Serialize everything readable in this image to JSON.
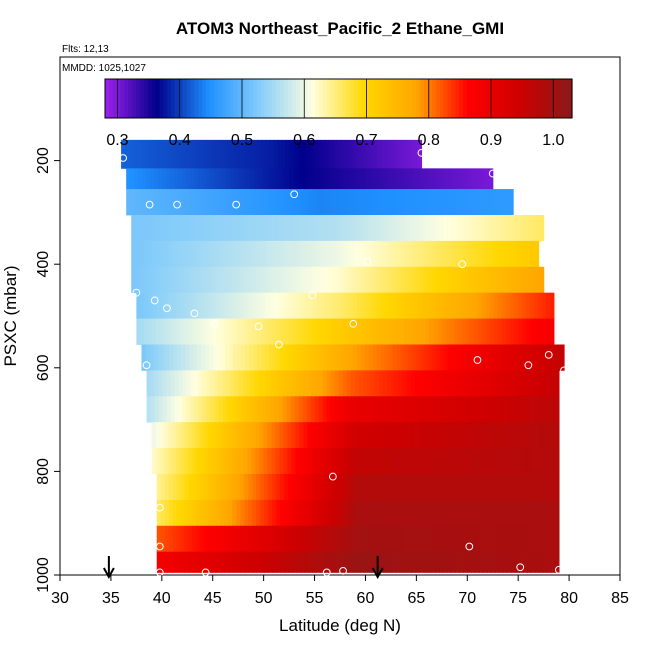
{
  "chart_data": {
    "type": "heatmap",
    "title": "ATOM3 Northeast_Pacific_2 Ethane_GMI",
    "flights_label": "Flts: 12,13",
    "date_label": "MMDD: 1025,1027",
    "xlabel": "Latitude (deg N)",
    "ylabel": "PSXC (mbar)",
    "xlim": [
      30,
      85
    ],
    "ylim": [
      1000,
      0
    ],
    "x_ticks": [
      "30",
      "35",
      "40",
      "45",
      "50",
      "55",
      "60",
      "65",
      "70",
      "75",
      "80",
      "85"
    ],
    "y_ticks": [
      "200",
      "400",
      "600",
      "800",
      "1000"
    ],
    "colorbar": {
      "range": [
        0.28,
        1.03
      ],
      "ticks": [
        "0.3",
        "0.4",
        "0.5",
        "0.6",
        "0.7",
        "0.8",
        "0.9",
        "1.0"
      ],
      "colors": [
        "#a020f0",
        "#00008b",
        "#1e90ff",
        "#87cefa",
        "#ffffe0",
        "#ffd700",
        "#ffa500",
        "#ff0000",
        "#cd0000",
        "#8b1a1a"
      ]
    },
    "rows": [
      {
        "p": 200,
        "lat_start": 36.0,
        "lat_end": 65.5,
        "v_start": 0.42,
        "v_mid": 0.38,
        "v_end": 0.3
      },
      {
        "p": 230,
        "lat_start": 36.5,
        "lat_end": 72.5,
        "v_start": 0.45,
        "v_mid": 0.36,
        "v_end": 0.3
      },
      {
        "p": 280,
        "lat_start": 36.5,
        "lat_end": 74.5,
        "v_start": 0.5,
        "v_mid": 0.44,
        "v_end": 0.46
      },
      {
        "p": 330,
        "lat_start": 37.0,
        "lat_end": 77.5,
        "v_start": 0.52,
        "v_mid": 0.56,
        "v_end": 0.66
      },
      {
        "p": 380,
        "lat_start": 37.0,
        "lat_end": 77.0,
        "v_start": 0.52,
        "v_mid": 0.6,
        "v_end": 0.72
      },
      {
        "p": 430,
        "lat_start": 37.0,
        "lat_end": 77.5,
        "v_start": 0.52,
        "v_mid": 0.62,
        "v_end": 0.78
      },
      {
        "p": 480,
        "lat_start": 37.5,
        "lat_end": 78.5,
        "v_start": 0.52,
        "v_mid": 0.66,
        "v_end": 0.85
      },
      {
        "p": 530,
        "lat_start": 37.5,
        "lat_end": 78.5,
        "v_start": 0.55,
        "v_mid": 0.72,
        "v_end": 0.88
      },
      {
        "p": 580,
        "lat_start": 38.0,
        "lat_end": 79.5,
        "v_start": 0.52,
        "v_mid": 0.78,
        "v_end": 0.96
      },
      {
        "p": 630,
        "lat_start": 38.5,
        "lat_end": 79.0,
        "v_start": 0.55,
        "v_mid": 0.82,
        "v_end": 0.96
      },
      {
        "p": 680,
        "lat_start": 38.5,
        "lat_end": 79.0,
        "v_start": 0.56,
        "v_mid": 0.9,
        "v_end": 0.97
      },
      {
        "p": 730,
        "lat_start": 39.0,
        "lat_end": 79.0,
        "v_start": 0.6,
        "v_mid": 0.94,
        "v_end": 0.98
      },
      {
        "p": 780,
        "lat_start": 39.0,
        "lat_end": 79.0,
        "v_start": 0.62,
        "v_mid": 0.96,
        "v_end": 0.98
      },
      {
        "p": 830,
        "lat_start": 39.5,
        "lat_end": 79.0,
        "v_start": 0.64,
        "v_mid": 0.98,
        "v_end": 0.98
      },
      {
        "p": 880,
        "lat_start": 39.5,
        "lat_end": 79.0,
        "v_start": 0.66,
        "v_mid": 0.99,
        "v_end": 0.99
      },
      {
        "p": 930,
        "lat_start": 39.5,
        "lat_end": 79.0,
        "v_start": 0.82,
        "v_mid": 1.0,
        "v_end": 0.99
      },
      {
        "p": 980,
        "lat_start": 39.5,
        "lat_end": 79.0,
        "v_start": 0.88,
        "v_mid": 1.01,
        "v_end": 0.99
      }
    ],
    "observation_points": [
      {
        "lat": 36.2,
        "p": 195
      },
      {
        "lat": 65.5,
        "p": 185
      },
      {
        "lat": 72.5,
        "p": 225
      },
      {
        "lat": 53.0,
        "p": 265
      },
      {
        "lat": 38.8,
        "p": 285
      },
      {
        "lat": 41.5,
        "p": 285
      },
      {
        "lat": 47.3,
        "p": 285
      },
      {
        "lat": 60.2,
        "p": 395
      },
      {
        "lat": 69.5,
        "p": 400
      },
      {
        "lat": 37.5,
        "p": 455
      },
      {
        "lat": 39.3,
        "p": 470
      },
      {
        "lat": 40.5,
        "p": 485
      },
      {
        "lat": 43.2,
        "p": 495
      },
      {
        "lat": 45.2,
        "p": 515
      },
      {
        "lat": 49.5,
        "p": 520
      },
      {
        "lat": 54.8,
        "p": 460
      },
      {
        "lat": 58.8,
        "p": 515
      },
      {
        "lat": 51.5,
        "p": 555
      },
      {
        "lat": 38.5,
        "p": 595
      },
      {
        "lat": 71.0,
        "p": 585
      },
      {
        "lat": 76.0,
        "p": 595
      },
      {
        "lat": 78.0,
        "p": 575
      },
      {
        "lat": 79.5,
        "p": 605
      },
      {
        "lat": 56.8,
        "p": 810
      },
      {
        "lat": 39.8,
        "p": 870
      },
      {
        "lat": 39.8,
        "p": 945
      },
      {
        "lat": 70.2,
        "p": 945
      },
      {
        "lat": 75.2,
        "p": 985
      },
      {
        "lat": 79.0,
        "p": 990
      },
      {
        "lat": 39.8,
        "p": 995
      },
      {
        "lat": 44.3,
        "p": 995
      },
      {
        "lat": 56.2,
        "p": 995
      },
      {
        "lat": 57.8,
        "p": 992
      }
    ],
    "arrows_lat": [
      34.8,
      61.2
    ]
  }
}
